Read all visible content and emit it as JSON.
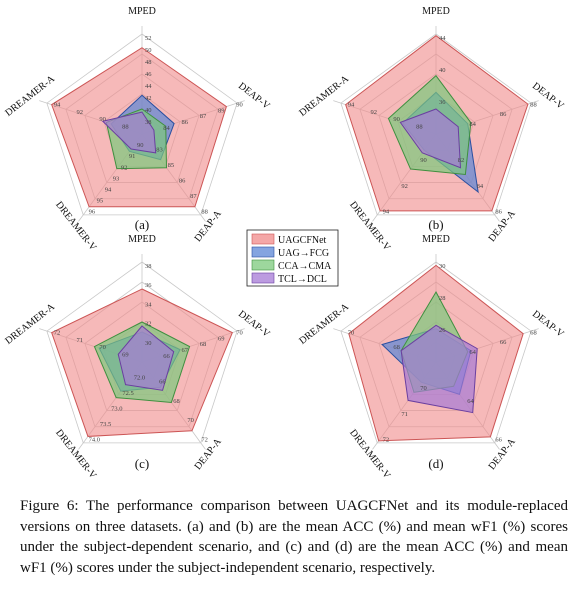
{
  "colors": {
    "UAGCFNet": "#f08a8a",
    "UAG_FCG": "#5b86d6",
    "CCA_CMA": "#7cc97c",
    "TCL_DCL": "#a67ad6"
  },
  "legend": [
    "UAGCFNet",
    "UAG→FCG",
    "CCA→CMA",
    "TCL→DCL"
  ],
  "caption": "Figure 6: The performance comparison between UAGCFNet and its module-replaced versions on three datasets. (a) and (b) are the mean ACC (%) and mean wF1 (%) scores under the subject-dependent scenario, and (c) and (d) are the mean ACC (%) and mean wF1 (%) scores under the subject-independent scenario, respectively.",
  "chart_data": [
    {
      "type": "radar",
      "label": "(a)",
      "axes": [
        "MPED",
        "DEAP-V",
        "DEAP-A",
        "DREAMER-V",
        "DREAMER-A"
      ],
      "ranges": [
        [
          36,
          52
        ],
        [
          82,
          90
        ],
        [
          82,
          88
        ],
        [
          89,
          96
        ],
        [
          86,
          94
        ]
      ],
      "ticks": [
        [
          "38",
          "40",
          "42",
          "44",
          "46",
          "48",
          "50",
          "52"
        ],
        [
          "84",
          "86",
          "87",
          "89",
          "90"
        ],
        [
          "83",
          "85",
          "86",
          "87",
          "88"
        ],
        [
          "90",
          "91",
          "92",
          "93",
          "94",
          "95",
          "96"
        ],
        [
          "88",
          "90",
          "92",
          "94"
        ]
      ],
      "series": [
        {
          "name": "UAGCFNet",
          "values": [
            49.8,
            89.1,
            87.4,
            95.3,
            93.6
          ]
        },
        {
          "name": "UAG→FCG",
          "values": [
            42.2,
            84.7,
            83.9,
            90.5,
            88.6
          ]
        },
        {
          "name": "CCA→CMA",
          "values": [
            40.0,
            84.0,
            84.5,
            92.0,
            89.0
          ]
        },
        {
          "name": "TCL→DCL",
          "values": [
            39.5,
            83.0,
            83.4,
            90.3,
            89.3
          ]
        }
      ]
    },
    {
      "type": "radar",
      "label": "(b)",
      "axes": [
        "MPED",
        "DEAP-V",
        "DEAP-A",
        "DREAMER-V",
        "DREAMER-A"
      ],
      "ranges": [
        [
          32,
          44
        ],
        [
          82,
          88
        ],
        [
          80,
          86
        ],
        [
          88,
          94
        ],
        [
          86,
          94
        ]
      ],
      "ticks": [
        [
          "36",
          "40",
          "44"
        ],
        [
          "84",
          "86",
          "88"
        ],
        [
          "82",
          "84",
          "86"
        ],
        [
          "90",
          "92",
          "94"
        ],
        [
          "88",
          "90",
          "92",
          "94"
        ]
      ],
      "series": [
        {
          "name": "UAGCFNet",
          "values": [
            43.8,
            87.8,
            85.7,
            93.7,
            93.6
          ]
        },
        {
          "name": "UAG→FCG",
          "values": [
            37.0,
            84.0,
            84.3,
            89.2,
            88.8
          ]
        },
        {
          "name": "CCA→CMA",
          "values": [
            39.0,
            84.2,
            83.0,
            90.6,
            90.0
          ]
        },
        {
          "name": "TCL→DCL",
          "values": [
            35.0,
            83.4,
            82.5,
            89.4,
            89.0
          ]
        }
      ]
    },
    {
      "type": "radar",
      "label": "(c)",
      "axes": [
        "MPED",
        "DEAP-V",
        "DEAP-A",
        "DREAMER-V",
        "DREAMER-A"
      ],
      "ranges": [
        [
          28,
          38
        ],
        [
          64,
          70
        ],
        [
          64,
          72
        ],
        [
          71.5,
          74.0
        ],
        [
          68,
          72
        ]
      ],
      "ticks": [
        [
          "30",
          "32",
          "34",
          "36",
          "38"
        ],
        [
          "66",
          "67",
          "68",
          "69",
          "70"
        ],
        [
          "66",
          "68",
          "70",
          "72"
        ],
        [
          "72.0",
          "72.5",
          "73.0",
          "73.5",
          "74.0"
        ],
        [
          "69",
          "70",
          "71",
          "72"
        ]
      ],
      "series": [
        {
          "name": "UAGCFNet",
          "values": [
            35.3,
            69.7,
            70.8,
            73.8,
            71.8
          ]
        },
        {
          "name": "UAG→FCG",
          "values": [
            31.0,
            66.4,
            66.5,
            72.4,
            69.8
          ]
        },
        {
          "name": "CCA→CMA",
          "values": [
            32.0,
            67.0,
            68.0,
            72.6,
            70.0
          ]
        },
        {
          "name": "TCL→DCL",
          "values": [
            31.6,
            66.0,
            66.8,
            72.2,
            69.0
          ]
        }
      ]
    },
    {
      "type": "radar",
      "label": "(d)",
      "axes": [
        "MPED",
        "DEAP-V",
        "DEAP-A",
        "DREAMER-V",
        "DREAMER-A"
      ],
      "ranges": [
        [
          24,
          30
        ],
        [
          62,
          68
        ],
        [
          62,
          66
        ],
        [
          68,
          72
        ],
        [
          66,
          72
        ]
      ],
      "ticks": [
        [
          "26",
          "28",
          "30"
        ],
        [
          "64",
          "66",
          "68"
        ],
        [
          "64",
          "66"
        ],
        [
          "70",
          "71",
          "72"
        ],
        [
          "68",
          "70"
        ]
      ],
      "series": [
        {
          "name": "UAGCFNet",
          "values": [
            29.8,
            67.5,
            65.7,
            71.9,
            71.5
          ]
        },
        {
          "name": "UAG→FCG",
          "values": [
            26.0,
            64.2,
            63.6,
            69.0,
            69.4
          ]
        },
        {
          "name": "CCA→CMA",
          "values": [
            28.2,
            64.0,
            63.2,
            69.5,
            68.2
          ]
        },
        {
          "name": "TCL→DCL",
          "values": [
            26.2,
            64.6,
            64.5,
            69.9,
            68.2
          ]
        }
      ]
    }
  ]
}
